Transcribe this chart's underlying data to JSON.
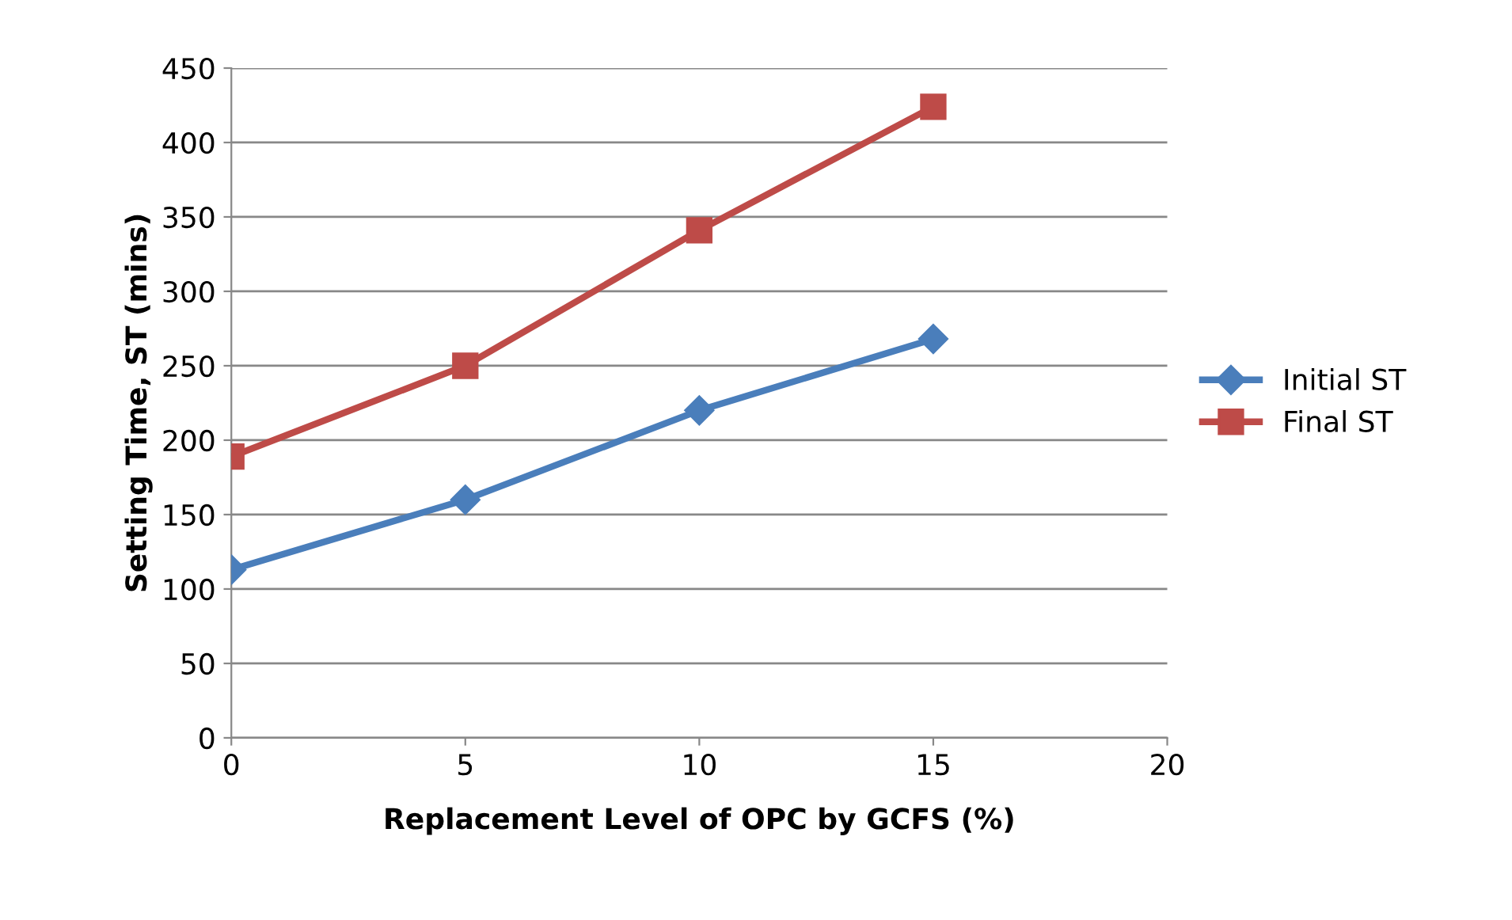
{
  "chart_data": {
    "type": "line",
    "xlabel": "Replacement Level of OPC by GCFS (%)",
    "ylabel": "Setting Time, ST (mins)",
    "x": [
      0,
      5,
      10,
      15
    ],
    "series": [
      {
        "name": "Initial ST",
        "color": "#4a7ebb",
        "marker": "diamond",
        "values": [
          113,
          160,
          220,
          268
        ]
      },
      {
        "name": "Final ST",
        "color": "#be4b48",
        "marker": "square",
        "values": [
          189,
          250,
          341,
          424
        ]
      }
    ],
    "xlim": [
      0,
      20
    ],
    "xticks": [
      0,
      5,
      10,
      15,
      20
    ],
    "ylim": [
      0,
      450
    ],
    "yticks": [
      0,
      50,
      100,
      150,
      200,
      250,
      300,
      350,
      400,
      450
    ],
    "grid": "y",
    "legend": "right",
    "line_style": "solid"
  }
}
